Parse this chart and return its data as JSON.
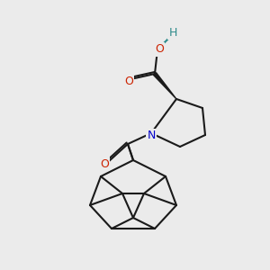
{
  "background_color": "#ebebeb",
  "bond_color": "#1a1a1a",
  "bond_width": 1.5,
  "atom_colors": {
    "O": "#cc2200",
    "N": "#0000cc",
    "H": "#2e8b8b"
  },
  "font_size": 9,
  "title": ""
}
